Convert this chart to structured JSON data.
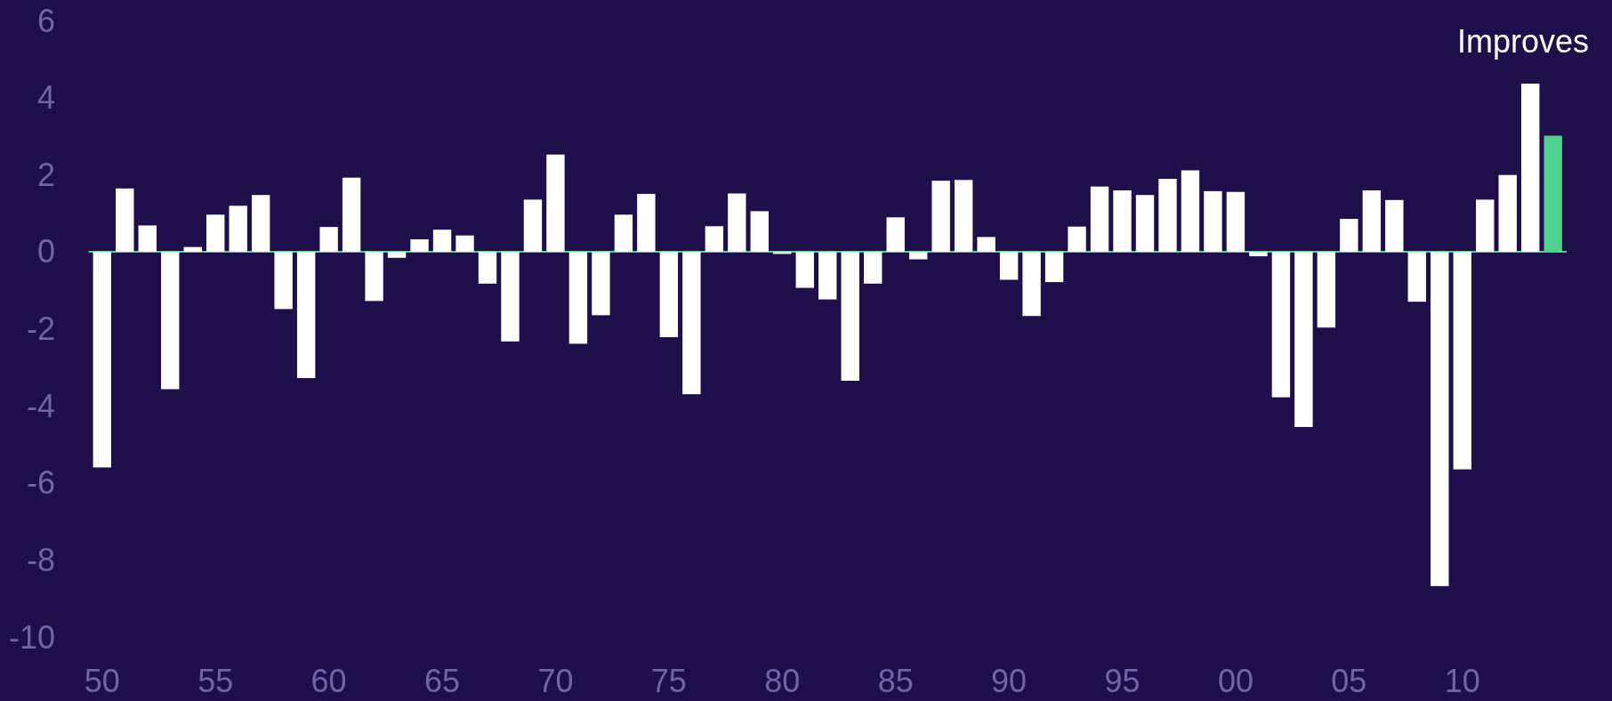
{
  "chart_data": {
    "type": "bar",
    "categories": [
      "50",
      null,
      null,
      null,
      null,
      "55",
      null,
      null,
      null,
      null,
      "60",
      null,
      null,
      null,
      null,
      "65",
      null,
      null,
      null,
      null,
      "70",
      null,
      null,
      null,
      null,
      "75",
      null,
      null,
      null,
      null,
      "80",
      null,
      null,
      null,
      null,
      "85",
      null,
      null,
      null,
      null,
      "90",
      null,
      null,
      null,
      null,
      "95",
      null,
      null,
      null,
      null,
      "00",
      null,
      null,
      null,
      null,
      "05",
      null,
      null,
      null,
      null,
      "10",
      null,
      null,
      null,
      null
    ],
    "values": [
      -5.6,
      1.64,
      0.68,
      -3.57,
      0.12,
      0.96,
      1.19,
      1.47,
      -1.49,
      -3.28,
      0.64,
      1.92,
      -1.28,
      -0.16,
      0.32,
      0.57,
      0.42,
      -0.83,
      -2.33,
      1.35,
      2.52,
      -2.39,
      -1.65,
      0.96,
      1.5,
      -2.22,
      -3.7,
      0.66,
      1.51,
      1.05,
      -0.06,
      -0.94,
      -1.24,
      -3.35,
      -0.83,
      0.89,
      -0.2,
      1.84,
      1.86,
      0.38,
      -0.73,
      -1.67,
      -0.79,
      0.65,
      1.69,
      1.59,
      1.47,
      1.89,
      2.11,
      1.57,
      1.55,
      -0.12,
      -3.78,
      -4.55,
      -1.97,
      0.85,
      1.59,
      1.34,
      -1.3,
      -8.68,
      -5.65,
      1.35,
      1.99,
      4.36,
      3.01
    ],
    "colors": [
      "#ffffff",
      "#ffffff",
      "#ffffff",
      "#ffffff",
      "#ffffff",
      "#ffffff",
      "#ffffff",
      "#ffffff",
      "#ffffff",
      "#ffffff",
      "#ffffff",
      "#ffffff",
      "#ffffff",
      "#ffffff",
      "#ffffff",
      "#ffffff",
      "#ffffff",
      "#ffffff",
      "#ffffff",
      "#ffffff",
      "#ffffff",
      "#ffffff",
      "#ffffff",
      "#ffffff",
      "#ffffff",
      "#ffffff",
      "#ffffff",
      "#ffffff",
      "#ffffff",
      "#ffffff",
      "#ffffff",
      "#ffffff",
      "#ffffff",
      "#ffffff",
      "#ffffff",
      "#ffffff",
      "#ffffff",
      "#ffffff",
      "#ffffff",
      "#ffffff",
      "#ffffff",
      "#ffffff",
      "#ffffff",
      "#ffffff",
      "#ffffff",
      "#ffffff",
      "#ffffff",
      "#ffffff",
      "#ffffff",
      "#ffffff",
      "#ffffff",
      "#ffffff",
      "#ffffff",
      "#ffffff",
      "#ffffff",
      "#ffffff",
      "#ffffff",
      "#ffffff",
      "#ffffff",
      "#ffffff",
      "#ffffff",
      "#ffffff",
      "#ffffff",
      "#ffffff",
      "#4fd18f"
    ],
    "ylim": [
      -10,
      6
    ],
    "yticks": [
      -10,
      -8,
      -6,
      -4,
      -2,
      0,
      2,
      4,
      6
    ],
    "ref_lines": [
      {
        "axis": "y",
        "value": 0,
        "color": "#4fd18f"
      }
    ],
    "annotations": [
      "Improves"
    ],
    "grid": false
  }
}
